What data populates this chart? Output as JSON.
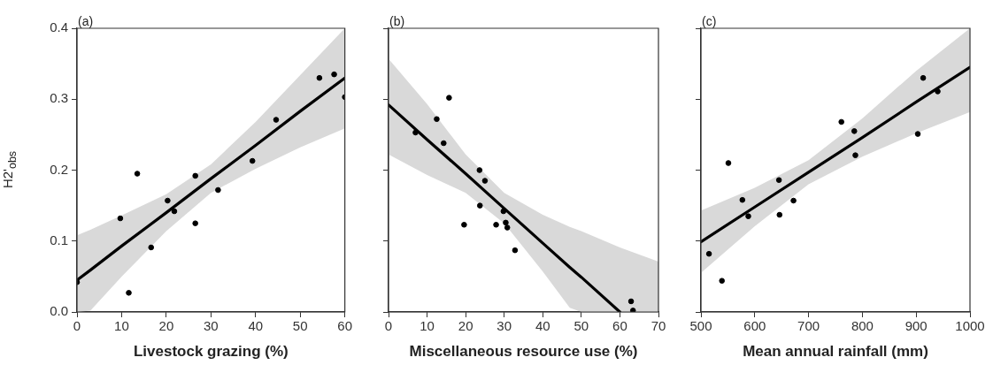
{
  "chart_data": [
    {
      "type": "scatter",
      "title": "(a)",
      "xlabel": "Livestock grazing (%)",
      "ylabel": "H2'$_{obs}$",
      "xlim": [
        0,
        60
      ],
      "xticks": [
        0,
        10,
        20,
        30,
        40,
        50,
        60
      ],
      "ylim": [
        0,
        0.4
      ],
      "yticks": [
        {
          "value": 0,
          "label": "0.0"
        },
        0.1,
        0.2,
        0.3,
        0.4
      ],
      "grid": false,
      "legend": false,
      "series": [
        {
          "type": "scatter",
          "color": "#000000",
          "marker": "circle",
          "x": [
            0,
            9.7,
            11.6,
            13.5,
            16.6,
            20.3,
            21.8,
            26.5,
            26.5,
            31.6,
            39.3,
            44.6,
            54.3,
            57.6,
            60
          ],
          "values": [
            0.042,
            0.132,
            0.027,
            0.195,
            0.091,
            0.157,
            0.142,
            0.192,
            0.125,
            0.172,
            0.213,
            0.271,
            0.33,
            0.335,
            0.303
          ]
        },
        {
          "type": "line",
          "color": "#000000",
          "marker": "none",
          "x": [
            0,
            3,
            10,
            20,
            30,
            40,
            50,
            60
          ],
          "values": [
            0.045,
            0.059,
            0.093,
            0.14,
            0.188,
            0.235,
            0.283,
            0.33
          ],
          "upper": [
            0.108,
            0.116,
            0.136,
            0.166,
            0.208,
            0.268,
            0.334,
            0.4
          ],
          "lower": [
            0,
            0.002,
            0.05,
            0.114,
            0.168,
            0.202,
            0.232,
            0.259
          ]
        }
      ]
    },
    {
      "type": "scatter",
      "title": "(b)",
      "xlabel": "Miscellaneous resource use (%)",
      "xlim": [
        0,
        70
      ],
      "xticks": [
        0,
        10,
        20,
        30,
        40,
        50,
        60,
        70
      ],
      "ylim": [
        0,
        0.4
      ],
      "yticks": [
        0,
        0.1,
        0.2,
        0.3,
        0.4
      ],
      "tick_labels": "x",
      "grid": false,
      "legend": false,
      "series": [
        {
          "type": "scatter",
          "color": "#000000",
          "marker": "circle",
          "x": [
            7,
            12.5,
            15.7,
            14.3,
            23.6,
            25,
            23.7,
            19.6,
            27.9,
            29.8,
            30.4,
            30.8,
            32.8,
            62.9,
            63.4
          ],
          "values": [
            0.253,
            0.272,
            0.302,
            0.238,
            0.2,
            0.185,
            0.15,
            0.123,
            0.123,
            0.142,
            0.126,
            0.119,
            0.087,
            0.015,
            0.002
          ]
        },
        {
          "type": "line",
          "color": "#000000",
          "marker": "none",
          "x": [
            0,
            10,
            20,
            30,
            40,
            47,
            50,
            60,
            70
          ],
          "values": [
            0.292,
            0.243,
            0.195,
            0.146,
            0.097,
            0.063,
            0.049,
            0,
            null
          ],
          "upper": [
            0.357,
            0.293,
            0.222,
            0.168,
            0.137,
            0.12,
            0.114,
            0.091,
            0.071
          ],
          "lower": [
            0.222,
            0.193,
            0.168,
            0.125,
            0.057,
            0.006,
            0,
            0,
            0
          ]
        }
      ]
    },
    {
      "type": "scatter",
      "title": "(c)",
      "xlabel": "Mean annual rainfall (mm)",
      "xlim": [
        500,
        1000
      ],
      "xticks": [
        500,
        600,
        700,
        800,
        900,
        1000
      ],
      "ylim": [
        0,
        0.4
      ],
      "yticks": [
        0,
        0.1,
        0.2,
        0.3,
        0.4
      ],
      "tick_labels": "x",
      "grid": false,
      "legend": false,
      "series": [
        {
          "type": "scatter",
          "color": "#000000",
          "marker": "circle",
          "x": [
            515,
            539,
            551,
            577,
            588,
            645,
            646,
            672,
            761,
            785,
            787,
            903,
            913,
            940
          ],
          "values": [
            0.082,
            0.044,
            0.21,
            0.158,
            0.135,
            0.186,
            0.137,
            0.157,
            0.268,
            0.255,
            0.221,
            0.251,
            0.33,
            0.311
          ]
        },
        {
          "type": "line",
          "color": "#000000",
          "marker": "none",
          "x": [
            500,
            600,
            700,
            800,
            900,
            1000
          ],
          "values": [
            0.099,
            0.148,
            0.197,
            0.246,
            0.296,
            0.345
          ],
          "upper": [
            0.143,
            0.175,
            0.214,
            0.273,
            0.34,
            0.4
          ],
          "lower": [
            0.055,
            0.121,
            0.18,
            0.219,
            0.252,
            0.282
          ]
        }
      ]
    }
  ]
}
